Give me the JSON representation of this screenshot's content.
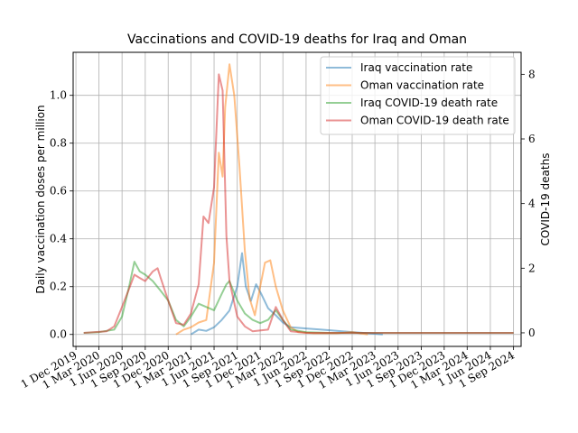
{
  "chart_data": {
    "type": "line",
    "title": "Vaccinations and COVID-19 deaths for Iraq and Oman",
    "ylabel_left": "Daily vaccination doses per million",
    "ylabel_right": "COVID-19 deaths",
    "x_tick_labels": [
      "1 Dec 2019",
      "1 Mar 2020",
      "1 Jun 2020",
      "1 Sep 2020",
      "1 Dec 2020",
      "1 Mar 2021",
      "1 Jun 2021",
      "1 Sep 2021",
      "1 Dec 2021",
      "1 Mar 2022",
      "1 Jun 2022",
      "1 Sep 2022",
      "1 Dec 2022",
      "1 Mar 2023",
      "1 Jun 2023",
      "1 Sep 2023",
      "1 Dec 2023",
      "1 Mar 2024",
      "1 Jun 2024",
      "1 Sep 2024"
    ],
    "x_tick_dates": [
      "2019-12-01",
      "2020-03-01",
      "2020-06-01",
      "2020-09-01",
      "2020-12-01",
      "2021-03-01",
      "2021-06-01",
      "2021-09-01",
      "2021-12-01",
      "2022-03-01",
      "2022-06-01",
      "2022-09-01",
      "2022-12-01",
      "2023-03-01",
      "2023-06-01",
      "2023-09-01",
      "2023-12-01",
      "2024-03-01",
      "2024-06-01",
      "2024-09-01"
    ],
    "xlim": [
      "2019-11-20",
      "2024-10-01"
    ],
    "ylim_left": [
      -0.05,
      1.18
    ],
    "yticks_left": [
      "0.0",
      "0.2",
      "0.4",
      "0.6",
      "0.8",
      "1.0"
    ],
    "yticks_left_values": [
      0.0,
      0.2,
      0.4,
      0.6,
      0.8,
      1.0
    ],
    "ylim_right": [
      -0.42,
      8.68
    ],
    "yticks_right": [
      "0",
      "2",
      "4",
      "6",
      "8"
    ],
    "yticks_right_values": [
      0,
      2,
      4,
      6,
      8
    ],
    "grid": true,
    "legend_position": "top-right",
    "series": [
      {
        "name": "Iraq vaccination rate",
        "color": "#1f77b4",
        "axis": "left",
        "points": [
          [
            "2021-03-01",
            0.0
          ],
          [
            "2021-04-01",
            0.02
          ],
          [
            "2021-05-01",
            0.015
          ],
          [
            "2021-06-01",
            0.03
          ],
          [
            "2021-07-01",
            0.06
          ],
          [
            "2021-08-01",
            0.1
          ],
          [
            "2021-09-01",
            0.2
          ],
          [
            "2021-09-20",
            0.34
          ],
          [
            "2021-10-05",
            0.2
          ],
          [
            "2021-10-25",
            0.14
          ],
          [
            "2021-11-15",
            0.21
          ],
          [
            "2021-12-05",
            0.17
          ],
          [
            "2022-01-01",
            0.11
          ],
          [
            "2022-02-01",
            0.08
          ],
          [
            "2022-03-01",
            0.05
          ],
          [
            "2022-04-01",
            0.03
          ],
          [
            "2022-06-01",
            0.025
          ],
          [
            "2022-08-01",
            0.02
          ],
          [
            "2022-10-01",
            0.015
          ],
          [
            "2022-12-01",
            0.01
          ],
          [
            "2023-02-01",
            0.005
          ],
          [
            "2023-04-01",
            0.0
          ]
        ]
      },
      {
        "name": "Oman vaccination rate",
        "color": "#ff7f0e",
        "axis": "left",
        "points": [
          [
            "2021-01-01",
            0.0
          ],
          [
            "2021-02-01",
            0.02
          ],
          [
            "2021-03-01",
            0.03
          ],
          [
            "2021-04-01",
            0.05
          ],
          [
            "2021-05-01",
            0.06
          ],
          [
            "2021-06-01",
            0.3
          ],
          [
            "2021-06-20",
            0.76
          ],
          [
            "2021-07-05",
            0.66
          ],
          [
            "2021-07-15",
            0.95
          ],
          [
            "2021-08-01",
            1.13
          ],
          [
            "2021-08-20",
            1.0
          ],
          [
            "2021-09-10",
            0.7
          ],
          [
            "2021-10-01",
            0.35
          ],
          [
            "2021-10-20",
            0.15
          ],
          [
            "2021-11-10",
            0.08
          ],
          [
            "2021-12-01",
            0.2
          ],
          [
            "2021-12-20",
            0.3
          ],
          [
            "2022-01-10",
            0.31
          ],
          [
            "2022-02-01",
            0.2
          ],
          [
            "2022-03-01",
            0.1
          ],
          [
            "2022-04-01",
            0.03
          ],
          [
            "2022-05-01",
            0.01
          ],
          [
            "2022-07-01",
            0.005
          ],
          [
            "2022-10-01",
            0.005
          ],
          [
            "2022-12-01",
            0.01
          ],
          [
            "2023-02-01",
            0.0
          ]
        ]
      },
      {
        "name": "Iraq COVID-19 death rate",
        "color": "#2ca02c",
        "axis": "right",
        "points": [
          [
            "2020-01-01",
            0.0
          ],
          [
            "2020-03-01",
            0.02
          ],
          [
            "2020-05-01",
            0.1
          ],
          [
            "2020-06-01",
            0.5
          ],
          [
            "2020-07-01",
            1.5
          ],
          [
            "2020-07-20",
            2.2
          ],
          [
            "2020-08-10",
            1.9
          ],
          [
            "2020-09-01",
            1.8
          ],
          [
            "2020-10-01",
            1.6
          ],
          [
            "2020-11-01",
            1.3
          ],
          [
            "2020-12-01",
            1.0
          ],
          [
            "2021-01-01",
            0.4
          ],
          [
            "2021-02-01",
            0.2
          ],
          [
            "2021-03-01",
            0.5
          ],
          [
            "2021-04-01",
            0.9
          ],
          [
            "2021-05-01",
            0.8
          ],
          [
            "2021-06-01",
            0.7
          ],
          [
            "2021-07-01",
            1.2
          ],
          [
            "2021-07-20",
            1.5
          ],
          [
            "2021-08-01",
            1.6
          ],
          [
            "2021-09-01",
            1.0
          ],
          [
            "2021-10-01",
            0.6
          ],
          [
            "2021-11-01",
            0.4
          ],
          [
            "2021-12-01",
            0.3
          ],
          [
            "2022-01-01",
            0.4
          ],
          [
            "2022-02-01",
            0.7
          ],
          [
            "2022-03-01",
            0.4
          ],
          [
            "2022-04-01",
            0.1
          ],
          [
            "2022-06-01",
            0.02
          ],
          [
            "2022-09-01",
            0.0
          ],
          [
            "2024-09-01",
            0.0
          ]
        ]
      },
      {
        "name": "Oman COVID-19 death rate",
        "color": "#d62728",
        "axis": "right",
        "points": [
          [
            "2020-01-01",
            0.0
          ],
          [
            "2020-04-01",
            0.05
          ],
          [
            "2020-05-01",
            0.2
          ],
          [
            "2020-06-01",
            0.8
          ],
          [
            "2020-07-01",
            1.4
          ],
          [
            "2020-07-20",
            1.8
          ],
          [
            "2020-08-10",
            1.7
          ],
          [
            "2020-09-01",
            1.6
          ],
          [
            "2020-10-01",
            1.9
          ],
          [
            "2020-10-20",
            2.0
          ],
          [
            "2020-11-01",
            1.7
          ],
          [
            "2020-12-01",
            1.0
          ],
          [
            "2021-01-01",
            0.3
          ],
          [
            "2021-02-01",
            0.25
          ],
          [
            "2021-03-01",
            0.6
          ],
          [
            "2021-04-01",
            1.5
          ],
          [
            "2021-04-20",
            3.6
          ],
          [
            "2021-05-10",
            3.4
          ],
          [
            "2021-06-01",
            4.5
          ],
          [
            "2021-06-20",
            8.0
          ],
          [
            "2021-07-05",
            7.5
          ],
          [
            "2021-07-20",
            3.0
          ],
          [
            "2021-08-01",
            1.6
          ],
          [
            "2021-09-01",
            0.5
          ],
          [
            "2021-10-01",
            0.2
          ],
          [
            "2021-11-01",
            0.05
          ],
          [
            "2022-01-01",
            0.1
          ],
          [
            "2022-02-01",
            0.8
          ],
          [
            "2022-03-01",
            0.4
          ],
          [
            "2022-04-01",
            0.05
          ],
          [
            "2022-06-01",
            0.0
          ],
          [
            "2024-09-01",
            0.0
          ]
        ]
      }
    ]
  }
}
